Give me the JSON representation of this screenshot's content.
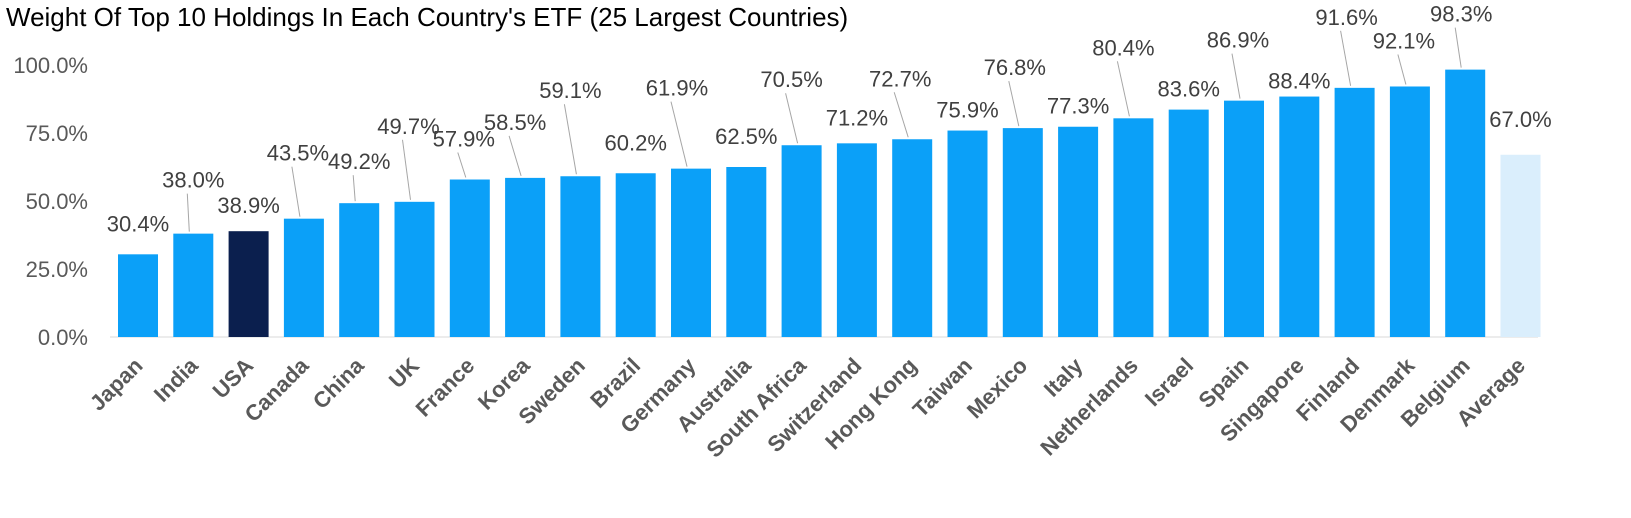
{
  "chart_data": {
    "type": "bar",
    "title": "Weight Of Top 10 Holdings In Each Country's ETF (25 Largest Countries)",
    "xlabel": "",
    "ylabel": "",
    "ylim": [
      0,
      100
    ],
    "yticks": [
      "0.0%",
      "25.0%",
      "50.0%",
      "75.0%",
      "100.0%"
    ],
    "categories": [
      "Japan",
      "India",
      "USA",
      "Canada",
      "China",
      "UK",
      "France",
      "Korea",
      "Sweden",
      "Brazil",
      "Germany",
      "Australia",
      "South Africa",
      "Switzerland",
      "Hong Kong",
      "Taiwan",
      "Mexico",
      "Italy",
      "Netherlands",
      "Israel",
      "Spain",
      "Singapore",
      "Finland",
      "Denmark",
      "Belgium",
      "Average"
    ],
    "values": [
      30.4,
      38.0,
      38.9,
      43.5,
      49.2,
      49.7,
      57.9,
      58.5,
      59.1,
      60.2,
      61.9,
      62.5,
      70.5,
      71.2,
      72.7,
      75.9,
      76.8,
      77.3,
      80.4,
      83.6,
      86.9,
      88.4,
      91.6,
      92.1,
      98.3,
      67.0
    ],
    "data_labels": [
      "30.4%",
      "38.0%",
      "38.9%",
      "43.5%",
      "49.2%",
      "49.7%",
      "57.9%",
      "58.5%",
      "59.1%",
      "60.2%",
      "61.9%",
      "62.5%",
      "70.5%",
      "71.2%",
      "72.7%",
      "75.9%",
      "76.8%",
      "77.3%",
      "80.4%",
      "83.6%",
      "86.9%",
      "88.4%",
      "91.6%",
      "92.1%",
      "98.3%",
      "67.0%"
    ],
    "colors": {
      "default": "#0BA0F8",
      "highlight": "#0B1F4E",
      "average": "#DAEEFC",
      "leader": "#A6A6A6"
    },
    "highlight_category": "USA",
    "average_category": "Average",
    "grid": false,
    "legend": "none"
  }
}
